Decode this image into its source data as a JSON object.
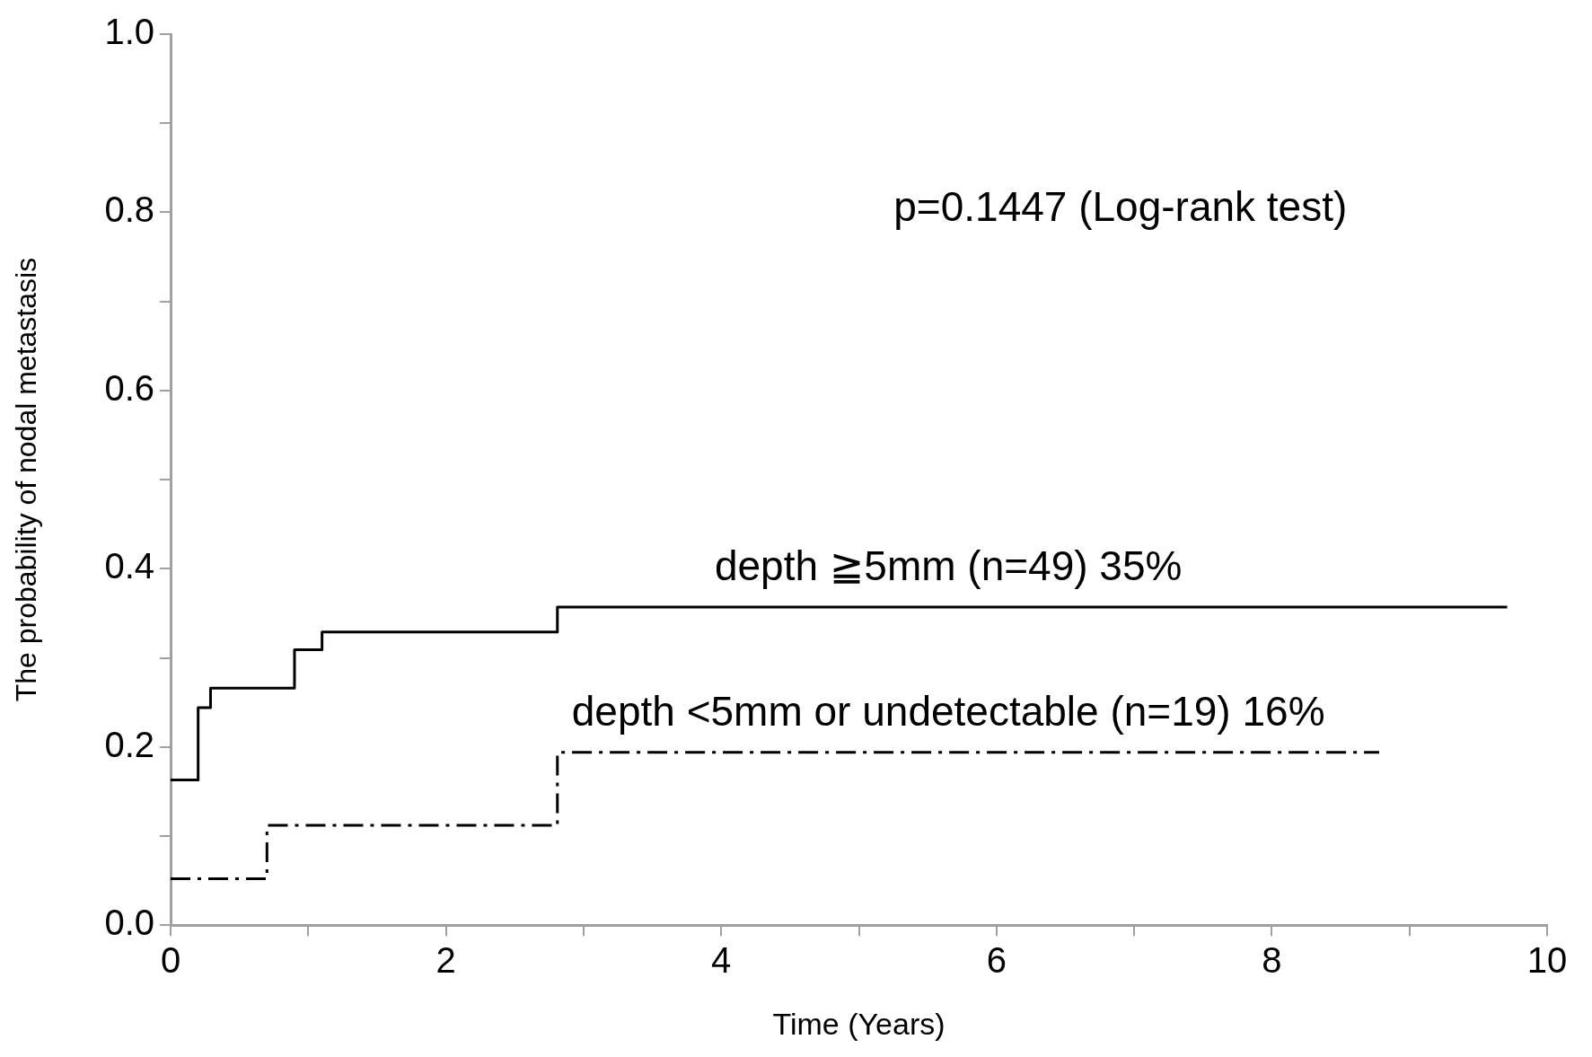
{
  "chart_data": {
    "type": "step",
    "xlabel": "Time (Years)",
    "ylabel": "The probability of nodal metastasis",
    "xlim": [
      0,
      10
    ],
    "xticks": [
      0,
      {
        "value": 1,
        "label": null
      },
      2,
      {
        "value": 3,
        "label": null
      },
      4,
      {
        "value": 5,
        "label": null
      },
      6,
      {
        "value": 7,
        "label": null
      },
      8,
      {
        "value": 9,
        "label": null
      },
      10
    ],
    "ylim": [
      0,
      1
    ],
    "yticks": [
      {
        "value": 0,
        "label": "0.0"
      },
      {
        "value": 0.1,
        "label": null
      },
      0.2,
      {
        "value": 0.3,
        "label": null
      },
      0.4,
      {
        "value": 0.5,
        "label": null
      },
      0.6,
      {
        "value": 0.7,
        "label": null
      },
      0.8,
      {
        "value": 0.9,
        "label": null
      },
      {
        "value": 1,
        "label": "1.0"
      }
    ],
    "grid": false,
    "legend": false,
    "marker": "none",
    "annotations": [
      "p=0.1447 (Log-rank test)"
    ],
    "series": [
      {
        "name": "depth ≧5mm (n=49) 35%",
        "color": "#000000",
        "line_style": "solid",
        "x": [
          0,
          0.2,
          0.29,
          0.9,
          1.1,
          2.81,
          9.71
        ],
        "values": [
          0.163,
          0.244,
          0.266,
          0.309,
          0.329,
          0.357,
          0.357
        ]
      },
      {
        "name": "depth <5mm or undetectable (n=19) 16%",
        "color": "#000000",
        "line_style": "dashed",
        "x": [
          0,
          0.7,
          2.81,
          8.78
        ],
        "values": [
          0.052,
          0.112,
          0.194,
          0.194
        ]
      }
    ]
  }
}
